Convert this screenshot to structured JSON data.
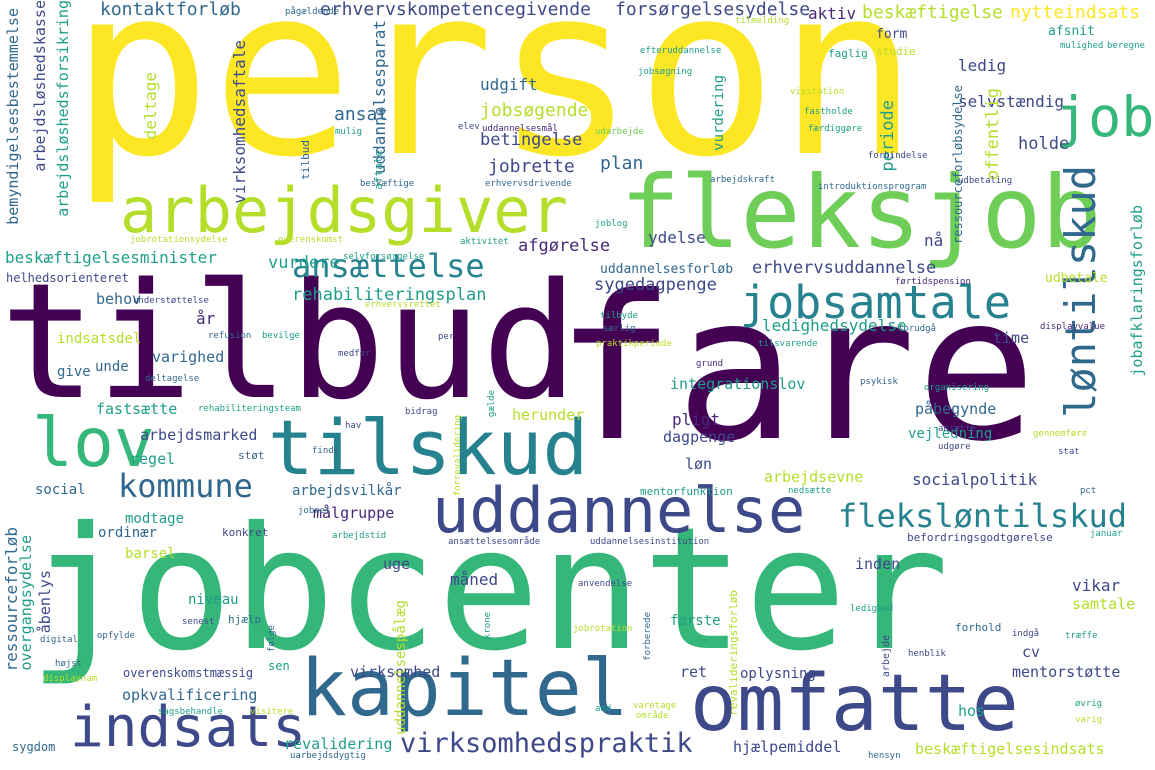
{
  "colors": {
    "yellow": "#fde725",
    "lime": "#b5de2b",
    "light_green": "#6ece58",
    "green": "#35b779",
    "teal": "#1f9e89",
    "cyan": "#26828e",
    "blue": "#31688e",
    "indigo": "#3e4989",
    "purple": "#482878",
    "dark_purple": "#440154"
  },
  "words": [
    {
      "text": "person",
      "color": "yellow"
    },
    {
      "text": "fare",
      "color": "dark_purple"
    },
    {
      "text": "tilbud",
      "color": "dark_purple"
    },
    {
      "text": "jobcenter",
      "color": "green"
    },
    {
      "text": "fleksjob",
      "color": "light_green"
    },
    {
      "text": "arbejdsgiver",
      "color": "lime"
    },
    {
      "text": "kapitel",
      "color": "blue"
    },
    {
      "text": "omfatte",
      "color": "indigo"
    },
    {
      "text": "tilskud",
      "color": "cyan"
    },
    {
      "text": "uddannelse",
      "color": "indigo"
    },
    {
      "text": "indsats",
      "color": "indigo"
    },
    {
      "text": "lov",
      "color": "green"
    },
    {
      "text": "job",
      "color": "green"
    },
    {
      "text": "jobsamtale",
      "color": "cyan"
    },
    {
      "text": "løntilskud",
      "color": "blue"
    },
    {
      "text": "fleksløntilskud",
      "color": "cyan"
    },
    {
      "text": "kommune",
      "color": "blue"
    },
    {
      "text": "ansættelse",
      "color": "cyan"
    },
    {
      "text": "virksomhedspraktik",
      "color": "indigo"
    },
    {
      "text": "kontaktforløb",
      "color": "blue"
    },
    {
      "text": "erhvervskompetencegivende",
      "color": "indigo"
    },
    {
      "text": "forsørgelsesydelse",
      "color": "indigo"
    },
    {
      "text": "aktiv",
      "color": "purple"
    },
    {
      "text": "beskæftigelse",
      "color": "lime"
    },
    {
      "text": "nytteindsats",
      "color": "yellow"
    },
    {
      "text": "afsnit",
      "color": "teal"
    },
    {
      "text": "form",
      "color": "indigo"
    },
    {
      "text": "faglig",
      "color": "teal"
    },
    {
      "text": "studie",
      "color": "lime"
    },
    {
      "text": "mulighed",
      "color": "teal"
    },
    {
      "text": "beregne",
      "color": "teal"
    },
    {
      "text": "pågældende",
      "color": "blue"
    },
    {
      "text": "tilmelding",
      "color": "lime"
    },
    {
      "text": "udgift",
      "color": "blue"
    },
    {
      "text": "efteruddannelse",
      "color": "teal"
    },
    {
      "text": "jobsøgning",
      "color": "teal"
    },
    {
      "text": "visitation",
      "color": "lime"
    },
    {
      "text": "fastholde",
      "color": "teal"
    },
    {
      "text": "færdiggøre",
      "color": "teal"
    },
    {
      "text": "ledig",
      "color": "indigo"
    },
    {
      "text": "selvstændig",
      "color": "indigo"
    },
    {
      "text": "ansat",
      "color": "blue"
    },
    {
      "text": "jobsøgende",
      "color": "lime"
    },
    {
      "text": "betingelse",
      "color": "indigo"
    },
    {
      "text": "jobrette",
      "color": "indigo"
    },
    {
      "text": "periode",
      "color": "teal"
    },
    {
      "text": "offentlig",
      "color": "lime"
    },
    {
      "text": "holde",
      "color": "indigo"
    },
    {
      "text": "plan",
      "color": "blue"
    },
    {
      "text": "elev",
      "color": "indigo"
    },
    {
      "text": "mulig",
      "color": "teal"
    },
    {
      "text": "uddannelsesmål",
      "color": "purple"
    },
    {
      "text": "udarbejde",
      "color": "light_green"
    },
    {
      "text": "arbejdskraft",
      "color": "blue"
    },
    {
      "text": "forbindelse",
      "color": "indigo"
    },
    {
      "text": "introduktionsprogram",
      "color": "blue"
    },
    {
      "text": "udbetaling",
      "color": "indigo"
    },
    {
      "text": "beskæftige",
      "color": "blue"
    },
    {
      "text": "erhvervsdrivende",
      "color": "blue"
    },
    {
      "text": "joblog",
      "color": "teal"
    },
    {
      "text": "aktivitet",
      "color": "teal"
    },
    {
      "text": "ydelse",
      "color": "indigo"
    },
    {
      "text": "jobrotationsydelse",
      "color": "lime"
    },
    {
      "text": "overenskomst",
      "color": "lime"
    },
    {
      "text": "selvforsørgelse",
      "color": "teal"
    },
    {
      "text": "nå",
      "color": "indigo"
    },
    {
      "text": "afgørelse",
      "color": "purple"
    },
    {
      "text": "beskæftigelsesminister",
      "color": "teal"
    },
    {
      "text": "vurdere",
      "color": "teal"
    },
    {
      "text": "uddannelsesforløb",
      "color": "blue"
    },
    {
      "text": "erhvervsuddannelse",
      "color": "indigo"
    },
    {
      "text": "helhedsorienteret",
      "color": "indigo"
    },
    {
      "text": "rehabiliteringsplan",
      "color": "teal"
    },
    {
      "text": "sygedagpenge",
      "color": "indigo"
    },
    {
      "text": "førtidspension",
      "color": "purple"
    },
    {
      "text": "udbetale",
      "color": "lime"
    },
    {
      "text": "behov",
      "color": "blue"
    },
    {
      "text": "understøttelse",
      "color": "indigo"
    },
    {
      "text": "erhvervsrettet",
      "color": "lime"
    },
    {
      "text": "år",
      "color": "purple"
    },
    {
      "text": "refusion",
      "color": "blue"
    },
    {
      "text": "ledighedsydelse",
      "color": "teal"
    },
    {
      "text": "forudgå",
      "color": "blue"
    },
    {
      "text": "displayvalue",
      "color": "purple"
    },
    {
      "text": "indsatsdel",
      "color": "lime"
    },
    {
      "text": "bevilge",
      "color": "teal"
    },
    {
      "text": "tilbyde",
      "color": "teal"
    },
    {
      "text": "særlig",
      "color": "blue"
    },
    {
      "text": "time",
      "color": "indigo"
    },
    {
      "text": "praktikperiode",
      "color": "lime"
    },
    {
      "text": "tilsvarende",
      "color": "teal"
    },
    {
      "text": "varighed",
      "color": "blue"
    },
    {
      "text": "medfør",
      "color": "indigo"
    },
    {
      "text": "per",
      "color": "indigo"
    },
    {
      "text": "grund",
      "color": "purple"
    },
    {
      "text": "give",
      "color": "blue"
    },
    {
      "text": "unde",
      "color": "blue"
    },
    {
      "text": "deltagelse",
      "color": "blue"
    },
    {
      "text": "integrationslov",
      "color": "teal"
    },
    {
      "text": "psykisk",
      "color": "blue"
    },
    {
      "text": "organisering",
      "color": "teal"
    },
    {
      "text": "fastsætte",
      "color": "teal"
    },
    {
      "text": "rehabiliteringsteam",
      "color": "teal"
    },
    {
      "text": "herunder",
      "color": "lime"
    },
    {
      "text": "påbegynde",
      "color": "blue"
    },
    {
      "text": "arbejdsmarked",
      "color": "indigo"
    },
    {
      "text": "hav",
      "color": "indigo"
    },
    {
      "text": "bidrag",
      "color": "indigo"
    },
    {
      "text": "dagpenge",
      "color": "indigo"
    },
    {
      "text": "pligt",
      "color": "purple"
    },
    {
      "text": "vejledning",
      "color": "teal"
    },
    {
      "text": "regel",
      "color": "teal"
    },
    {
      "text": "støt",
      "color": "blue"
    },
    {
      "text": "finde",
      "color": "blue"
    },
    {
      "text": "ansætte",
      "color": "indigo"
    },
    {
      "text": "udgøre",
      "color": "indigo"
    },
    {
      "text": "gennemføre",
      "color": "lime"
    },
    {
      "text": "stat",
      "color": "indigo"
    },
    {
      "text": "løn",
      "color": "indigo"
    },
    {
      "text": "socialpolitik",
      "color": "indigo"
    },
    {
      "text": "arbejdsevne",
      "color": "lime"
    },
    {
      "text": "social",
      "color": "blue"
    },
    {
      "text": "arbejdsvilkår",
      "color": "blue"
    },
    {
      "text": "mentorfunktion",
      "color": "teal"
    },
    {
      "text": "nedsætte",
      "color": "teal"
    },
    {
      "text": "pct",
      "color": "blue"
    },
    {
      "text": "modtage",
      "color": "teal"
    },
    {
      "text": "målgruppe",
      "color": "purple"
    },
    {
      "text": "jobnet",
      "color": "blue"
    },
    {
      "text": "ordinær",
      "color": "blue"
    },
    {
      "text": "konkret",
      "color": "indigo"
    },
    {
      "text": "arbejdstid",
      "color": "teal"
    },
    {
      "text": "ansættelsesområde",
      "color": "indigo"
    },
    {
      "text": "uddannelsesinstitution",
      "color": "indigo"
    },
    {
      "text": "befordringsgodtgørelse",
      "color": "indigo"
    },
    {
      "text": "januar",
      "color": "teal"
    },
    {
      "text": "barsel",
      "color": "lime"
    },
    {
      "text": "uge",
      "color": "indigo"
    },
    {
      "text": "inden",
      "color": "indigo"
    },
    {
      "text": "niveau",
      "color": "teal"
    },
    {
      "text": "måned",
      "color": "indigo"
    },
    {
      "text": "anvendelse",
      "color": "indigo"
    },
    {
      "text": "vikar",
      "color": "indigo"
    },
    {
      "text": "samtale",
      "color": "lime"
    },
    {
      "text": "hjælp",
      "color": "blue"
    },
    {
      "text": "senest",
      "color": "indigo"
    },
    {
      "text": "første",
      "color": "teal"
    },
    {
      "text": "jobrotation",
      "color": "lime"
    },
    {
      "text": "ledighed",
      "color": "teal"
    },
    {
      "text": "forhold",
      "color": "blue"
    },
    {
      "text": "opfylde",
      "color": "blue"
    },
    {
      "text": "digital",
      "color": "blue"
    },
    {
      "text": "træffe",
      "color": "teal"
    },
    {
      "text": "indgå",
      "color": "indigo"
    },
    {
      "text": "cv",
      "color": "indigo"
    },
    {
      "text": "henblik",
      "color": "indigo"
    },
    {
      "text": "højst",
      "color": "blue"
    },
    {
      "text": "overenskomstmæssig",
      "color": "indigo"
    },
    {
      "text": "sen",
      "color": "teal"
    },
    {
      "text": "virksomhed",
      "color": "indigo"
    },
    {
      "text": "ret",
      "color": "indigo"
    },
    {
      "text": "oplysning",
      "color": "indigo"
    },
    {
      "text": "mentorstøtte",
      "color": "indigo"
    },
    {
      "text": "displaynam",
      "color": "lime"
    },
    {
      "text": "opkvalificering",
      "color": "blue"
    },
    {
      "text": "hos",
      "color": "teal"
    },
    {
      "text": "øvrig",
      "color": "teal"
    },
    {
      "text": "varig",
      "color": "lime"
    },
    {
      "text": "sagsbehandle",
      "color": "teal"
    },
    {
      "text": "visitere",
      "color": "lime"
    },
    {
      "text": "and",
      "color": "teal"
    },
    {
      "text": "varetage",
      "color": "lime"
    },
    {
      "text": "område",
      "color": "lime"
    },
    {
      "text": "revalidering",
      "color": "teal"
    },
    {
      "text": "hjælpemiddel",
      "color": "indigo"
    },
    {
      "text": "sygdom",
      "color": "blue"
    },
    {
      "text": "uarbejdsdygtig",
      "color": "blue"
    },
    {
      "text": "hensyn",
      "color": "blue"
    },
    {
      "text": "beskæftigelsesindsats",
      "color": "lime"
    },
    {
      "text": "bemyndigelsesbestemmelse",
      "color": "blue"
    },
    {
      "text": "arbejdsløshedskasse",
      "color": "indigo"
    },
    {
      "text": "arbejdsløshedsforsikring",
      "color": "teal"
    },
    {
      "text": "deltage",
      "color": "lime"
    },
    {
      "text": "virksomhedsaftale",
      "color": "indigo"
    },
    {
      "text": "uddannelsesparat",
      "color": "blue"
    },
    {
      "text": "aftale",
      "color": "teal"
    },
    {
      "text": "tilbud",
      "color": "blue"
    },
    {
      "text": "vurdering",
      "color": "teal"
    },
    {
      "text": "ressourceforløbsydelse",
      "color": "blue"
    },
    {
      "text": "jobafklaringsforløb",
      "color": "teal"
    },
    {
      "text": "ressourceforløb",
      "color": "blue"
    },
    {
      "text": "overgangsydelse",
      "color": "teal"
    },
    {
      "text": "åbenlys",
      "color": "indigo"
    },
    {
      "text": "følge",
      "color": "blue"
    },
    {
      "text": "uddannelsespålæg",
      "color": "lime"
    },
    {
      "text": "krone",
      "color": "teal"
    },
    {
      "text": "forberede",
      "color": "blue"
    },
    {
      "text": "revalideringsforløb",
      "color": "lime"
    },
    {
      "text": "arbejde",
      "color": "indigo"
    },
    {
      "text": "gælde",
      "color": "teal"
    },
    {
      "text": "forrevalidering",
      "color": "lime"
    }
  ]
}
